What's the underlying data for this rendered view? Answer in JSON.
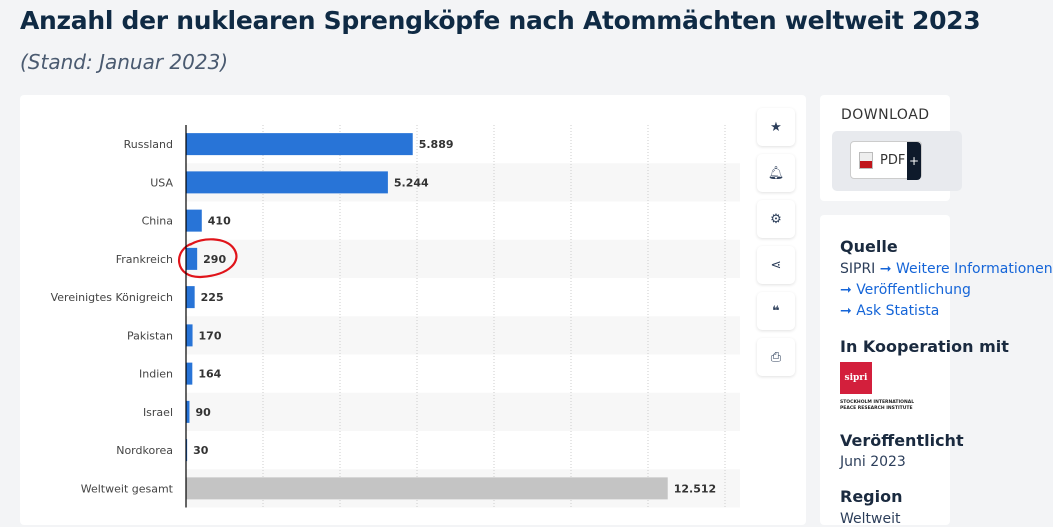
{
  "header": {
    "title": "Anzahl der nuklearen Sprengköpfe nach Atommächten weltweit 2023",
    "subtitle": "(Stand: Januar 2023)"
  },
  "chart_data": {
    "type": "bar",
    "orientation": "horizontal",
    "categories": [
      "Russland",
      "USA",
      "China",
      "Frankreich",
      "Vereinigtes Königreich",
      "Pakistan",
      "Indien",
      "Israel",
      "Nordkorea",
      "Weltweit gesamt"
    ],
    "values": [
      5889,
      5244,
      410,
      290,
      225,
      170,
      164,
      90,
      30,
      12512
    ],
    "value_labels": [
      "5.889",
      "5.244",
      "410",
      "290",
      "225",
      "170",
      "164",
      "90",
      "30",
      "12.512"
    ],
    "xlim": [
      0,
      14000
    ],
    "grid_step": 2000,
    "grid": true,
    "colors": {
      "bar": "#2874d7",
      "total": "#c4c4c4",
      "highlight_circle": "#e0141a"
    },
    "annotations": [
      {
        "type": "hand-drawn circle",
        "target": "Frankreich"
      }
    ]
  },
  "toolbar": [
    "star-icon",
    "bell-icon",
    "gear-icon",
    "share-icon",
    "quote-icon",
    "print-icon"
  ],
  "download": {
    "heading": "DOWNLOAD",
    "pdf_label": "PDF",
    "plus": "+"
  },
  "sidebar": {
    "source_heading": "Quelle",
    "source_name": "SIPRI",
    "links": [
      "Weitere Informationen",
      "Veröffentlichung",
      "Ask Statista"
    ],
    "coop_heading": "In Kooperation mit",
    "logo_text": "sipri",
    "logo_caption": "STOCKHOLM INTERNATIONAL PEACE RESEARCH INSTITUTE",
    "published_heading": "Veröffentlicht",
    "published_value": "Juni 2023",
    "region_heading": "Region",
    "region_value": "Weltweit"
  }
}
